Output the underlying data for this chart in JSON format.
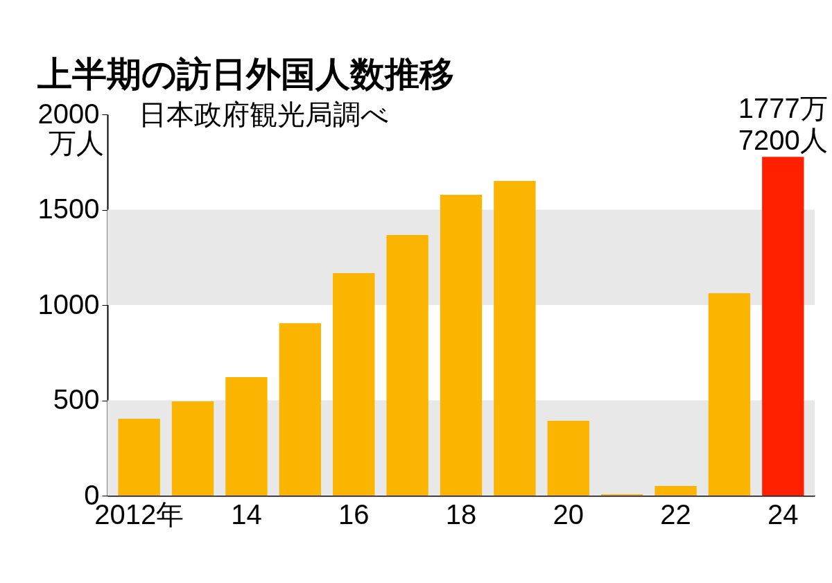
{
  "chart_data": {
    "type": "bar",
    "title": "上半期の訪日外国人数推移",
    "subtitle": "日本政府観光局調べ",
    "ylabel": "万人",
    "categories": [
      "2012年",
      null,
      "14",
      null,
      "16",
      null,
      "18",
      null,
      "20",
      null,
      "22",
      null,
      "24"
    ],
    "values": [
      404,
      495,
      622,
      905,
      1167,
      1367,
      1578,
      1651,
      393,
      7,
      51,
      1062,
      1777.72
    ],
    "colors": [
      "#fbb400",
      "#fbb400",
      "#fbb400",
      "#fbb400",
      "#fbb400",
      "#fbb400",
      "#fbb400",
      "#fbb400",
      "#fbb400",
      "#fbb400",
      "#fbb400",
      "#fbb400",
      "#ff2000"
    ],
    "ylim": [
      0,
      2000
    ],
    "yticks": [
      0,
      500,
      1000,
      1500,
      2000
    ],
    "bands": [
      {
        "axis": "y",
        "from": 0,
        "to": 500,
        "color": "#e8e8e8"
      },
      {
        "axis": "y",
        "from": 1000,
        "to": 1500,
        "color": "#e8e8e8"
      }
    ],
    "annotations": [
      {
        "text": "1777万\n7200人",
        "x": "24",
        "y": 1777.72
      }
    ]
  }
}
